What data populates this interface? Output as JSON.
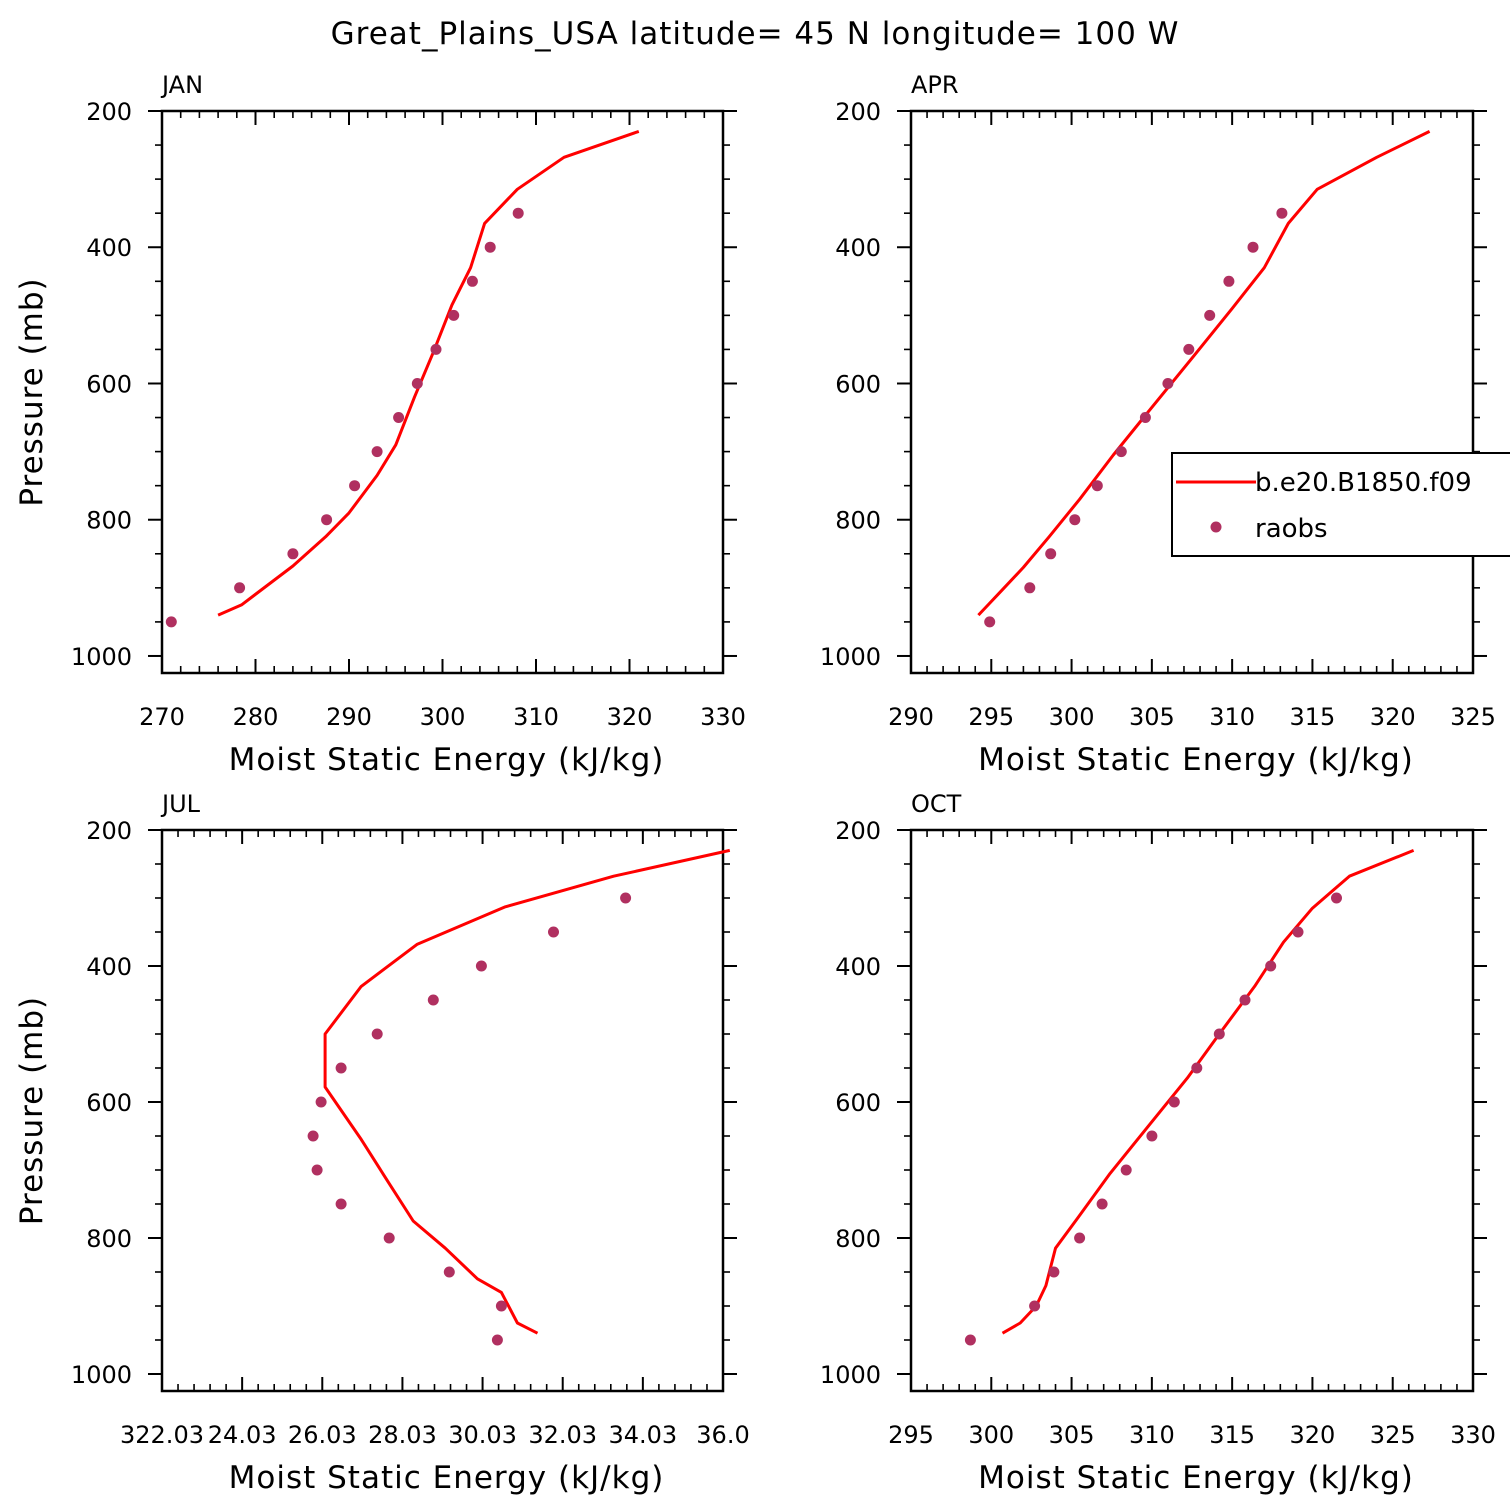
{
  "figure": {
    "title": "Great_Plains_USA  latitude= 45 N longitude= 100 W",
    "colors": {
      "model": "#ff0000",
      "obs": "#b03060",
      "axes": "#000000"
    }
  },
  "legend": {
    "entries": [
      {
        "label": "b.e20.B1850.f09",
        "kind": "line"
      },
      {
        "label": "raobs",
        "kind": "marker"
      }
    ]
  },
  "chart_data": [
    {
      "type": "line",
      "panel": "JAN",
      "xlabel": "Moist Static Energy (kJ/kg)",
      "ylabel": "Pressure (mb)",
      "xlim": [
        270,
        330
      ],
      "xticks": [
        270,
        280,
        290,
        300,
        310,
        320,
        330
      ],
      "xtick_labels": [
        "270",
        "280",
        "290",
        "300",
        "310",
        "320",
        "330"
      ],
      "ylim": [
        200,
        1025
      ],
      "yticks": [
        200,
        400,
        600,
        800,
        1000
      ],
      "yreversed": true,
      "series": [
        {
          "kind": "line",
          "points": [
            [
              276,
              940
            ],
            [
              278.5,
              925
            ],
            [
              284,
              868
            ],
            [
              287.5,
              825
            ],
            [
              290,
              790
            ],
            [
              293,
              735
            ],
            [
              295,
              690
            ],
            [
              297,
              620
            ],
            [
              299,
              555
            ],
            [
              301,
              485
            ],
            [
              303,
              430
            ],
            [
              304.5,
              365
            ],
            [
              308,
              315
            ],
            [
              313,
              268
            ],
            [
              321,
              230
            ]
          ]
        },
        {
          "kind": "marker",
          "points": [
            [
              271,
              950
            ],
            [
              278.3,
              900
            ],
            [
              284,
              850
            ],
            [
              287.6,
              800
            ],
            [
              290.6,
              750
            ],
            [
              293,
              700
            ],
            [
              295.3,
              650
            ],
            [
              297.3,
              600
            ],
            [
              299.3,
              550
            ],
            [
              301.2,
              500
            ],
            [
              303.2,
              450
            ],
            [
              305.1,
              400
            ],
            [
              308.1,
              350
            ]
          ]
        }
      ]
    },
    {
      "type": "line",
      "panel": "APR",
      "xlabel": "Moist Static Energy (kJ/kg)",
      "ylabel": "",
      "xlim": [
        290,
        325
      ],
      "xticks": [
        290,
        295,
        300,
        305,
        310,
        315,
        320,
        325
      ],
      "xtick_labels": [
        "290",
        "295",
        "300",
        "305",
        "310",
        "315",
        "320",
        "325"
      ],
      "ylim": [
        200,
        1025
      ],
      "yticks": [
        200,
        400,
        600,
        800,
        1000
      ],
      "yreversed": true,
      "series": [
        {
          "kind": "line",
          "points": [
            [
              294.2,
              940
            ],
            [
              294.8,
              925
            ],
            [
              295.6,
              905
            ],
            [
              297,
              870
            ],
            [
              298.6,
              825
            ],
            [
              300.5,
              770
            ],
            [
              302.6,
              705
            ],
            [
              305,
              635
            ],
            [
              307.6,
              560
            ],
            [
              310,
              490
            ],
            [
              312,
              430
            ],
            [
              313.5,
              365
            ],
            [
              315.3,
              315
            ],
            [
              319,
              268
            ],
            [
              322.3,
              230
            ]
          ]
        },
        {
          "kind": "marker",
          "points": [
            [
              294.9,
              950
            ],
            [
              297.4,
              900
            ],
            [
              298.7,
              850
            ],
            [
              300.2,
              800
            ],
            [
              301.6,
              750
            ],
            [
              303.1,
              700
            ],
            [
              304.6,
              650
            ],
            [
              306,
              600
            ],
            [
              307.3,
              550
            ],
            [
              308.6,
              500
            ],
            [
              309.8,
              450
            ],
            [
              311.3,
              400
            ],
            [
              313.1,
              350
            ]
          ]
        }
      ]
    },
    {
      "type": "line",
      "panel": "JUL",
      "xlabel": "Moist Static Energy (kJ/kg)",
      "ylabel": "Pressure (mb)",
      "xlim": [
        322.03,
        336.03
      ],
      "xticks": [
        322.03,
        324.03,
        326.03,
        328.03,
        330.03,
        332.03,
        334.03,
        336.03
      ],
      "xtick_labels": [
        "322.03",
        "24.03",
        "26.03",
        "28.03",
        "30.03",
        "32.03",
        "34.03",
        "36.0"
      ],
      "ylim": [
        200,
        1025
      ],
      "yticks": [
        200,
        400,
        600,
        800,
        1000
      ],
      "yreversed": true,
      "series": [
        {
          "kind": "line",
          "points": [
            [
              331.4,
              940
            ],
            [
              330.9,
              925
            ],
            [
              330.5,
              880
            ],
            [
              329.9,
              860
            ],
            [
              329.1,
              815
            ],
            [
              328.3,
              775
            ],
            [
              327.7,
              720
            ],
            [
              327,
              655
            ],
            [
              326.1,
              578
            ],
            [
              326.1,
              500
            ],
            [
              327,
              430
            ],
            [
              328.4,
              368
            ],
            [
              330.6,
              313
            ],
            [
              333.3,
              268
            ],
            [
              336.2,
              230
            ]
          ]
        },
        {
          "kind": "marker",
          "points": [
            [
              330.4,
              950
            ],
            [
              330.5,
              900
            ],
            [
              329.2,
              850
            ],
            [
              327.7,
              800
            ],
            [
              326.5,
              750
            ],
            [
              325.9,
              700
            ],
            [
              325.8,
              650
            ],
            [
              326,
              600
            ],
            [
              326.5,
              550
            ],
            [
              327.4,
              500
            ],
            [
              328.8,
              450
            ],
            [
              330,
              400
            ],
            [
              331.8,
              350
            ],
            [
              333.6,
              300
            ]
          ]
        }
      ]
    },
    {
      "type": "line",
      "panel": "OCT",
      "xlabel": "Moist Static Energy (kJ/kg)",
      "ylabel": "",
      "xlim": [
        295,
        330
      ],
      "xticks": [
        295,
        300,
        305,
        310,
        315,
        320,
        325,
        330
      ],
      "xtick_labels": [
        "295",
        "300",
        "305",
        "310",
        "315",
        "320",
        "325",
        "330"
      ],
      "ylim": [
        200,
        1025
      ],
      "yticks": [
        200,
        400,
        600,
        800,
        1000
      ],
      "yreversed": true,
      "series": [
        {
          "kind": "line",
          "points": [
            [
              300.7,
              940
            ],
            [
              301.8,
              925
            ],
            [
              302.8,
              900
            ],
            [
              303.4,
              870
            ],
            [
              304,
              815
            ],
            [
              305.4,
              770
            ],
            [
              307.4,
              705
            ],
            [
              309.8,
              635
            ],
            [
              312.2,
              565
            ],
            [
              314.2,
              500
            ],
            [
              316.4,
              430
            ],
            [
              318.2,
              365
            ],
            [
              320,
              315
            ],
            [
              322.3,
              268
            ],
            [
              326.3,
              230
            ]
          ]
        },
        {
          "kind": "marker",
          "points": [
            [
              298.7,
              950
            ],
            [
              302.7,
              900
            ],
            [
              303.9,
              850
            ],
            [
              305.5,
              800
            ],
            [
              306.9,
              750
            ],
            [
              308.4,
              700
            ],
            [
              310,
              650
            ],
            [
              311.4,
              600
            ],
            [
              312.8,
              550
            ],
            [
              314.2,
              500
            ],
            [
              315.8,
              450
            ],
            [
              317.4,
              400
            ],
            [
              319.1,
              350
            ],
            [
              321.5,
              300
            ]
          ]
        }
      ]
    }
  ]
}
